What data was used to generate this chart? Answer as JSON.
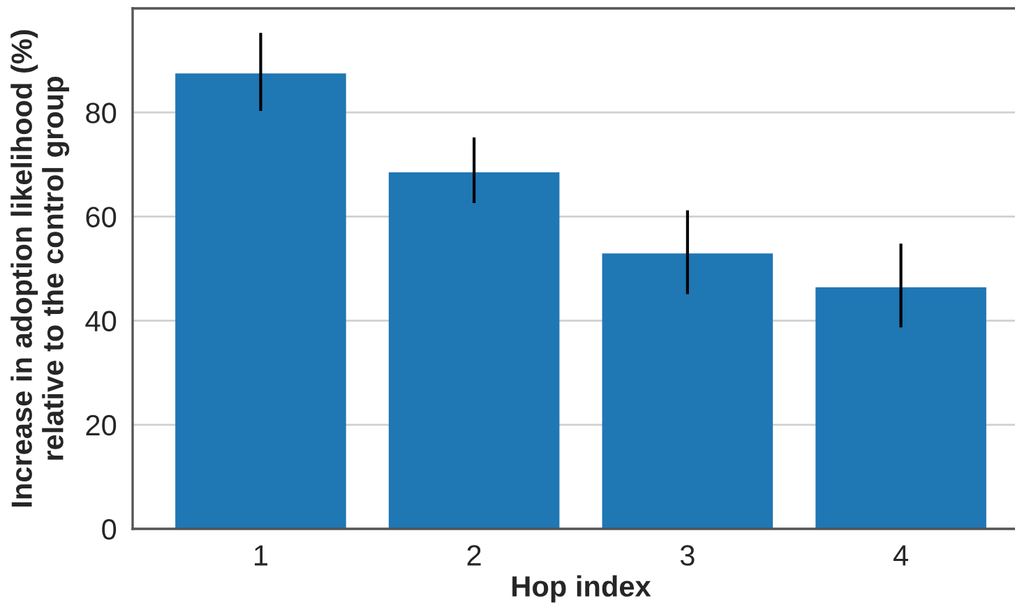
{
  "chart_data": {
    "type": "bar",
    "xlabel": "Hop index",
    "ylabel": "Increase in adoption likelihood (%)\nrelative to the control group",
    "categories": [
      "1",
      "2",
      "3",
      "4"
    ],
    "values": [
      87.5,
      68.5,
      52.9,
      46.4
    ],
    "color": "#1f77b4",
    "errors": [
      [
        80.3,
        95.3
      ],
      [
        62.6,
        75.2
      ],
      [
        45.1,
        61.2
      ],
      [
        38.7,
        54.8
      ]
    ],
    "ylim": [
      0,
      100
    ],
    "yticks": [
      0,
      20,
      40,
      60,
      80
    ],
    "grid": "y"
  }
}
